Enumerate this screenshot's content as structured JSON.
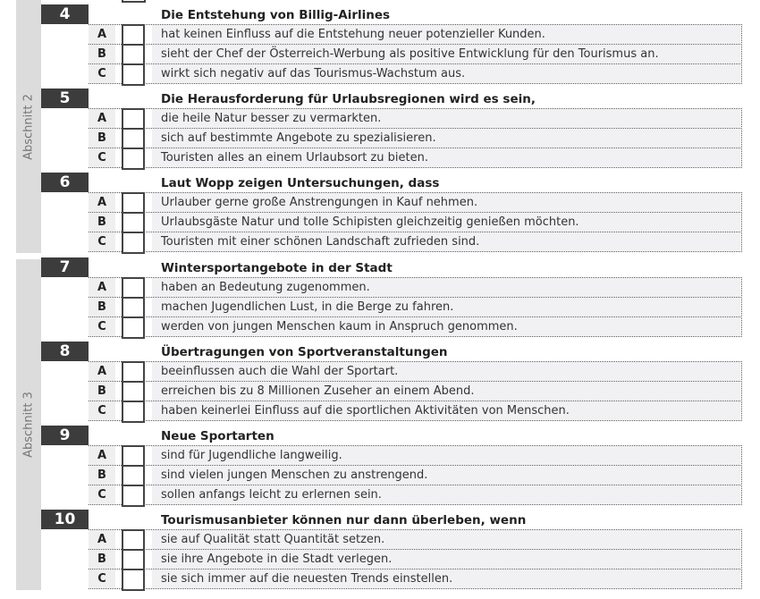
{
  "sections": [
    {
      "label": "Abschnitt 2"
    },
    {
      "label": "Abschnitt 3"
    }
  ],
  "questions": [
    {
      "number": "4",
      "stem": "Die Entstehung von Billig-Airlines",
      "options": [
        {
          "letter": "A",
          "text": "hat keinen Einfluss auf die Entstehung neuer potenzieller Kunden."
        },
        {
          "letter": "B",
          "text": "sieht der Chef der Österreich-Werbung als positive Entwicklung für den Tourismus an."
        },
        {
          "letter": "C",
          "text": "wirkt sich negativ auf das Tourismus-Wachstum aus."
        }
      ]
    },
    {
      "number": "5",
      "stem": "Die Herausforderung für Urlaubsregionen wird es sein,",
      "options": [
        {
          "letter": "A",
          "text": "die heile Natur besser zu vermarkten."
        },
        {
          "letter": "B",
          "text": "sich auf bestimmte Angebote zu spezialisieren."
        },
        {
          "letter": "C",
          "text": "Touristen alles an einem Urlaubsort zu bieten."
        }
      ]
    },
    {
      "number": "6",
      "stem": "Laut Wopp zeigen Untersuchungen, dass",
      "options": [
        {
          "letter": "A",
          "text": "Urlauber gerne große Anstrengungen in Kauf nehmen."
        },
        {
          "letter": "B",
          "text": "Urlaubsgäste Natur und tolle Schipisten gleichzeitig genießen möchten."
        },
        {
          "letter": "C",
          "text": "Touristen mit einer schönen Landschaft zufrieden sind."
        }
      ]
    },
    {
      "number": "7",
      "stem": "Wintersportangebote in der Stadt",
      "options": [
        {
          "letter": "A",
          "text": "haben an Bedeutung zugenommen."
        },
        {
          "letter": "B",
          "text": "machen Jugendlichen Lust, in die Berge zu fahren."
        },
        {
          "letter": "C",
          "text": "werden von jungen Menschen kaum in Anspruch genommen."
        }
      ]
    },
    {
      "number": "8",
      "stem": "Übertragungen von Sportveranstaltungen",
      "options": [
        {
          "letter": "A",
          "text": "beeinflussen auch die Wahl der Sportart."
        },
        {
          "letter": "B",
          "text": "erreichen bis zu 8 Millionen Zuseher an einem Abend."
        },
        {
          "letter": "C",
          "text": "haben keinerlei Einfluss auf die sportlichen Aktivitäten von Menschen."
        }
      ]
    },
    {
      "number": "9",
      "stem": "Neue Sportarten",
      "options": [
        {
          "letter": "A",
          "text": "sind für Jugendliche langweilig."
        },
        {
          "letter": "B",
          "text": "sind vielen jungen Menschen zu anstrengend."
        },
        {
          "letter": "C",
          "text": "sollen anfangs leicht zu erlernen sein."
        }
      ]
    },
    {
      "number": "10",
      "stem": "Tourismusanbieter können nur dann überleben, wenn",
      "options": [
        {
          "letter": "A",
          "text": "sie auf Qualität statt Quantität setzen."
        },
        {
          "letter": "B",
          "text": "sie ihre Angebote in die Stadt verlegen."
        },
        {
          "letter": "C",
          "text": "sie sich immer auf die neuesten Trends einstellen."
        }
      ]
    }
  ]
}
